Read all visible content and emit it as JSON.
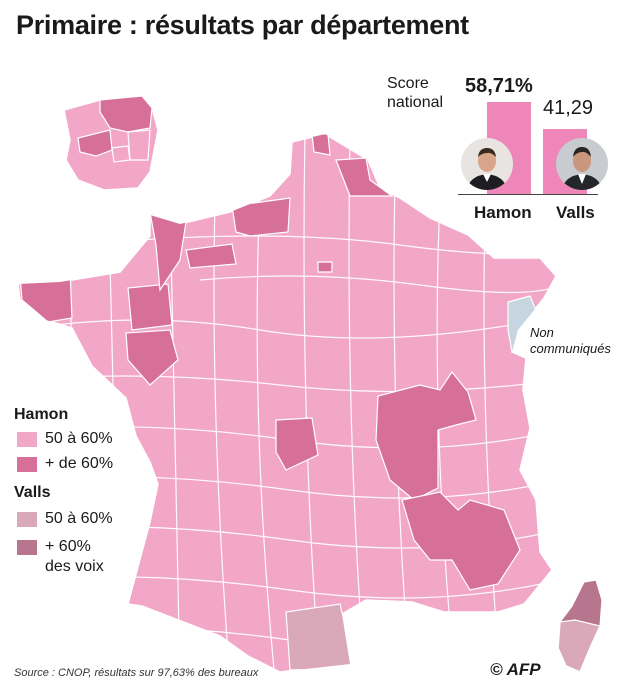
{
  "title": "Primaire : résultats par département",
  "national": {
    "label": "Score\nnational",
    "hamon_pct": "58,71%",
    "valls_pct": "41,29",
    "hamon_share": 58.71,
    "valls_share": 41.29,
    "hamon_name": "Hamon",
    "valls_name": "Valls"
  },
  "legend": {
    "hamon_title": "Hamon",
    "hamon_50_60": "50 à 60%",
    "hamon_60_plus": "+ de 60%",
    "valls_title": "Valls",
    "valls_50_60": "50 à 60%",
    "valls_60_plus_line1": "+ 60%",
    "valls_60_plus_line2": "des voix"
  },
  "non_communiques": "Non\ncommuniqués",
  "source": "Source : CNOP, résultats sur 97,63% des bureaux",
  "credit": "© AFP",
  "colors": {
    "hamon_50_60": "#f2a6c8",
    "hamon_60_plus": "#d67098",
    "valls_50_60": "#d9a9b9",
    "valls_60_plus": "#b8768e",
    "non_communiques": "#c6d5e0",
    "bar": "#ef86b9"
  }
}
